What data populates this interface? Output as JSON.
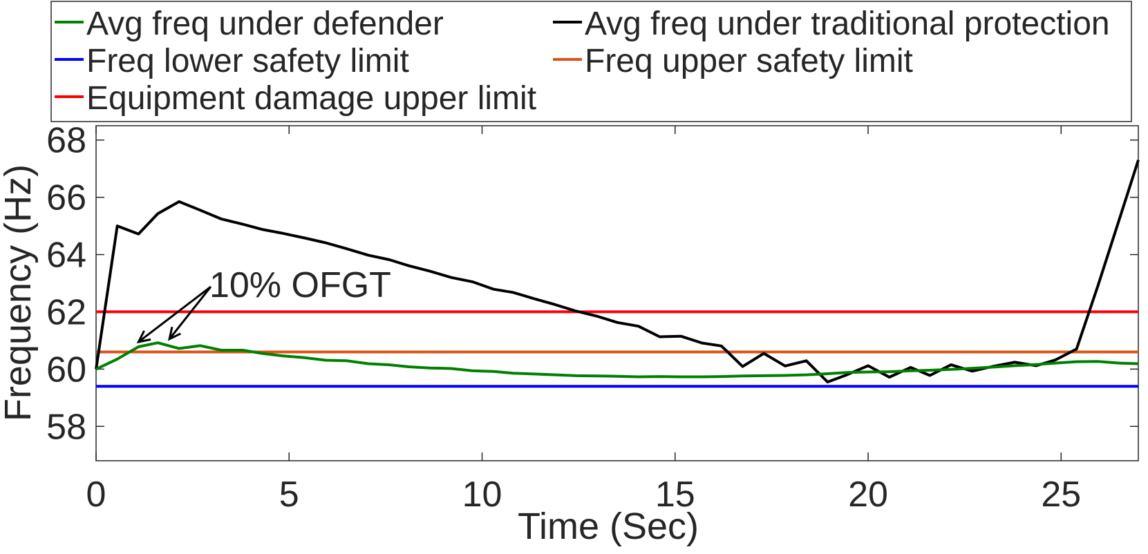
{
  "chart_data": {
    "type": "line",
    "title": "",
    "xlabel": "Time (Sec)",
    "ylabel": "Frequency (Hz)",
    "xlim": [
      0,
      27
    ],
    "ylim": [
      56.8,
      68.5
    ],
    "xticks": [
      0,
      5,
      10,
      15,
      20,
      25
    ],
    "yticks": [
      58,
      60,
      62,
      64,
      66,
      68
    ],
    "grid": false,
    "legend_position": "top",
    "series": [
      {
        "name": "Avg freq under defender",
        "color": "#008000",
        "x": [
          0,
          0.55,
          1.1,
          1.6,
          2.15,
          2.7,
          3.25,
          3.8,
          4.3,
          4.85,
          5.4,
          5.95,
          6.5,
          7.05,
          7.6,
          8.1,
          8.65,
          9.2,
          9.75,
          10.3,
          10.8,
          11.35,
          11.9,
          12.45,
          13,
          13.5,
          14.05,
          14.6,
          15.15,
          15.7,
          16.2,
          16.75,
          17.3,
          17.85,
          18.4,
          18.95,
          19.45,
          20,
          20.55,
          21.1,
          21.6,
          22.15,
          22.7,
          23.25,
          23.8,
          24.35,
          24.85,
          25.4,
          25.95,
          26.5,
          27
        ],
        "y": [
          60.0,
          60.35,
          60.78,
          60.92,
          60.72,
          60.82,
          60.66,
          60.66,
          60.55,
          60.46,
          60.4,
          60.31,
          60.29,
          60.19,
          60.15,
          60.08,
          60.04,
          60.02,
          59.94,
          59.92,
          59.86,
          59.83,
          59.8,
          59.77,
          59.76,
          59.75,
          59.73,
          59.74,
          59.73,
          59.73,
          59.74,
          59.76,
          59.77,
          59.78,
          59.8,
          59.84,
          59.88,
          59.9,
          59.91,
          59.94,
          59.96,
          59.99,
          60.03,
          60.07,
          60.12,
          60.16,
          60.21,
          60.26,
          60.27,
          60.21,
          60.19
        ]
      },
      {
        "name": "Avg freq under traditional protection",
        "color": "#000000",
        "x": [
          0,
          0.55,
          1.1,
          1.6,
          2.15,
          2.7,
          3.25,
          3.8,
          4.3,
          4.85,
          5.4,
          5.95,
          6.5,
          7.05,
          7.6,
          8.1,
          8.65,
          9.2,
          9.75,
          10.3,
          10.8,
          11.35,
          11.9,
          12.45,
          13,
          13.5,
          14.05,
          14.6,
          15.15,
          15.7,
          16.2,
          16.75,
          17.3,
          17.85,
          18.4,
          18.95,
          19.45,
          20,
          20.55,
          21.1,
          21.6,
          22.15,
          22.7,
          23.25,
          23.8,
          24.35,
          24.85,
          25.4,
          25.95,
          26.5,
          27
        ],
        "y": [
          60.0,
          65.0,
          64.72,
          65.43,
          65.85,
          65.55,
          65.24,
          65.06,
          64.88,
          64.74,
          64.58,
          64.41,
          64.2,
          63.98,
          63.82,
          63.61,
          63.42,
          63.2,
          63.05,
          62.79,
          62.68,
          62.46,
          62.25,
          62.02,
          61.84,
          61.63,
          61.5,
          61.13,
          61.15,
          60.91,
          60.81,
          60.09,
          60.55,
          60.11,
          60.29,
          59.55,
          59.8,
          60.12,
          59.72,
          60.06,
          59.78,
          60.15,
          59.93,
          60.1,
          60.24,
          60.12,
          60.32,
          60.7,
          62.9,
          65.2,
          67.3
        ]
      },
      {
        "name": "Freq lower safety limit",
        "color": "#0000ff",
        "x": [
          0,
          27
        ],
        "y": [
          59.4,
          59.4
        ]
      },
      {
        "name": "Freq upper safety limit",
        "color": "#d95319",
        "x": [
          0,
          27
        ],
        "y": [
          60.6,
          60.6
        ]
      },
      {
        "name": "Equipment damage upper limit",
        "color": "#ff0000",
        "x": [
          0,
          27
        ],
        "y": [
          62.0,
          62.0
        ]
      }
    ],
    "annotations": [
      {
        "text": "10% OFGT",
        "x": 2.9,
        "y": 62.95,
        "arrows_to": [
          [
            1.1,
            60.95
          ],
          [
            1.9,
            61.05
          ]
        ]
      }
    ]
  }
}
